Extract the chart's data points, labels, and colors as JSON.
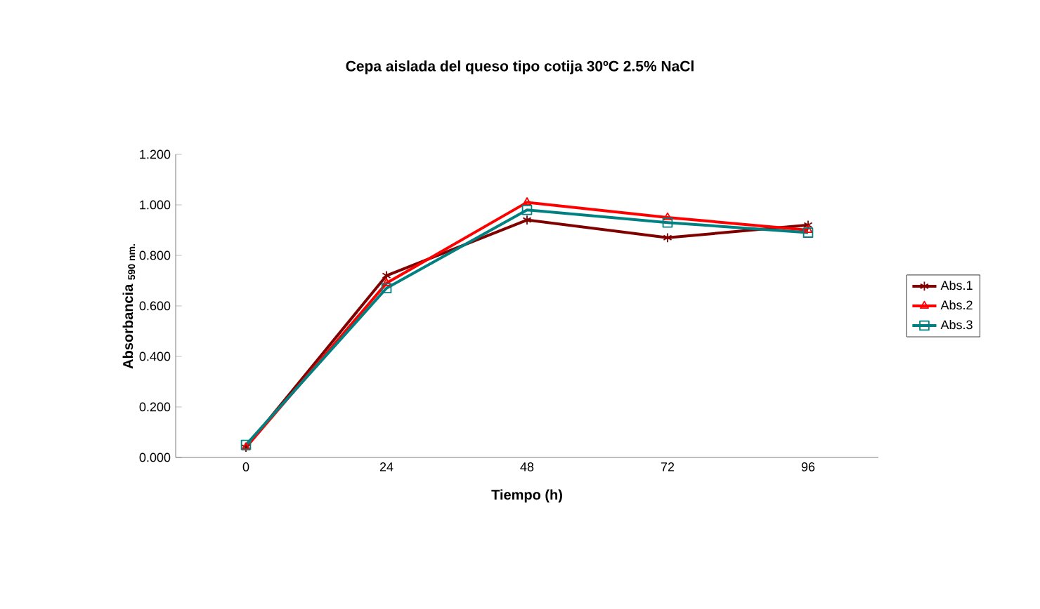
{
  "chart_data": {
    "type": "line",
    "title": "Cepa aislada del queso tipo cotija 30ºC 2.5% NaCl",
    "xlabel": "Tiempo (h)",
    "ylabel": "Absorbancia $_{590 nm.}$",
    "categories": [
      "0",
      "24",
      "48",
      "72",
      "96"
    ],
    "series": [
      {
        "name": "Abs.1",
        "color": "#800000",
        "marker": "cross",
        "values": [
          0.04,
          0.72,
          0.94,
          0.87,
          0.92
        ]
      },
      {
        "name": "Abs.2",
        "color": "#ff0000",
        "marker": "triangle",
        "values": [
          0.04,
          0.69,
          1.01,
          0.95,
          0.9
        ]
      },
      {
        "name": "Abs.3",
        "color": "#008080",
        "marker": "square",
        "values": [
          0.05,
          0.67,
          0.98,
          0.93,
          0.89
        ]
      }
    ],
    "ylim": [
      0,
      1.2
    ],
    "yticks": [
      {
        "value": 0,
        "label": "0.000"
      },
      {
        "value": 0.2,
        "label": "0.200"
      },
      {
        "value": 0.4,
        "label": "0.400"
      },
      {
        "value": 0.6,
        "label": "0.600"
      },
      {
        "value": 0.8,
        "label": "0.800"
      },
      {
        "value": 1.0,
        "label": "1.000"
      },
      {
        "value": 1.2,
        "label": "1.200"
      }
    ],
    "grid": false,
    "legend": "right",
    "line_style": "solid"
  }
}
